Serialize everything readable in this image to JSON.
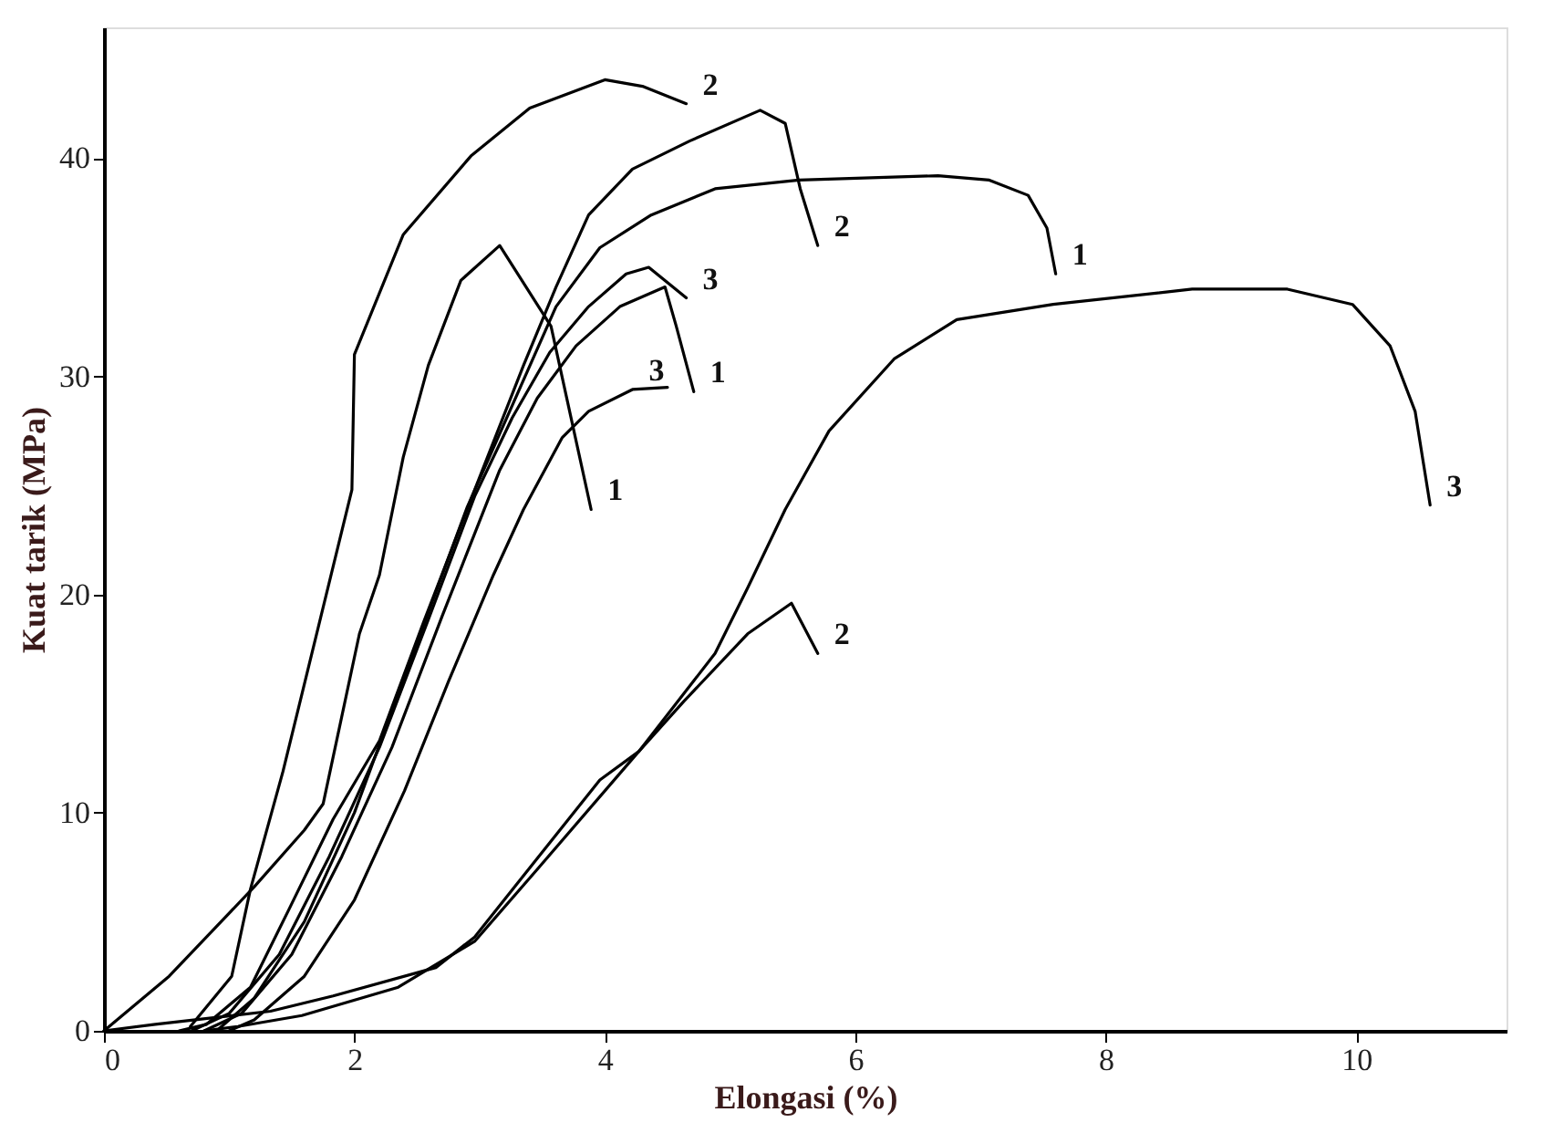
{
  "chart_data": {
    "type": "line",
    "xlabel": "Elongasi (%)",
    "ylabel": "Kuat tarik (MPa)",
    "xlim": [
      0,
      11.2
    ],
    "ylim": [
      0,
      46
    ],
    "xticks": [
      0,
      2,
      4,
      6,
      8,
      10
    ],
    "yticks": [
      0,
      10,
      20,
      30,
      40
    ],
    "grid": false,
    "marker": "none",
    "line_style": "solid",
    "series": [
      {
        "color": "#000000",
        "x": [
          0.69,
          1.02,
          1.17,
          1.43,
          1.98,
          2.0,
          2.39,
          2.93,
          3.4,
          4.0,
          4.3,
          4.65
        ],
        "values": [
          0.2,
          2.5,
          6.5,
          11.9,
          24.8,
          31,
          36.5,
          40.1,
          42.3,
          43.6,
          43.3,
          42.5
        ]
      },
      {
        "color": "#000000",
        "x": [
          0,
          0.52,
          1.2,
          1.6,
          1.75,
          2.04,
          2.2,
          2.39,
          2.59,
          2.85,
          3.16,
          3.57,
          3.73,
          3.89
        ],
        "values": [
          0,
          2.5,
          6.6,
          9.2,
          10.4,
          18.2,
          20.9,
          26.3,
          30.5,
          34.4,
          36,
          32.3,
          28.1,
          23.9
        ]
      },
      {
        "color": "#000000",
        "x": [
          0.6,
          0.82,
          1.17,
          1.48,
          1.83,
          2.2,
          2.55,
          2.96,
          3.35,
          3.61,
          3.87,
          4.22,
          4.68,
          5.24,
          5.44,
          5.56,
          5.7
        ],
        "values": [
          0,
          0.3,
          2,
          5.6,
          9.7,
          13.3,
          18.7,
          24.8,
          30.5,
          34.1,
          37.4,
          39.5,
          40.8,
          42.2,
          41.6,
          38.6,
          36
        ]
      },
      {
        "color": "#000000",
        "x": [
          0.9,
          1.2,
          1.6,
          2.0,
          2.45,
          2.9,
          3.61,
          3.96,
          4.37,
          4.88,
          5.55,
          6.66,
          7.07,
          7.38,
          7.53,
          7.6
        ],
        "values": [
          0,
          1.5,
          5,
          10,
          17,
          24,
          33.2,
          35.9,
          37.4,
          38.6,
          39,
          39.2,
          39,
          38.3,
          36.8,
          34.7
        ]
      },
      {
        "color": "#000000",
        "x": [
          0.7,
          1.0,
          1.4,
          1.8,
          2.2,
          2.6,
          2.96,
          3.26,
          3.56,
          3.87,
          4.17,
          4.35,
          4.65
        ],
        "values": [
          0,
          0.8,
          3.5,
          8,
          13,
          19,
          24.5,
          28.1,
          31.1,
          33.2,
          34.7,
          35,
          33.6
        ]
      },
      {
        "color": "#000000",
        "x": [
          0.8,
          1.1,
          1.5,
          1.9,
          2.3,
          2.7,
          3.16,
          3.46,
          3.77,
          4.12,
          4.48,
          4.57,
          4.71
        ],
        "values": [
          0,
          0.8,
          3.5,
          8,
          13,
          19,
          25.7,
          29,
          31.4,
          33.2,
          34.1,
          32.3,
          29.3
        ]
      },
      {
        "color": "#000000",
        "x": [
          1.0,
          1.2,
          1.6,
          2.0,
          2.4,
          2.75,
          3.11,
          3.35,
          3.66,
          3.87,
          4.22,
          4.5
        ],
        "values": [
          0,
          0.5,
          2.5,
          6,
          11,
          16,
          20.9,
          23.9,
          27.2,
          28.4,
          29.4,
          29.5
        ]
      },
      {
        "color": "#000000",
        "x": [
          0.8,
          1.07,
          1.58,
          2.35,
          2.96,
          3.46,
          4.27,
          4.88,
          5.14,
          5.44,
          5.79,
          6.31,
          6.81,
          7.58,
          8.69,
          9.45,
          9.97,
          10.27,
          10.47,
          10.59
        ],
        "values": [
          0,
          0.2,
          0.7,
          2,
          4.1,
          7.4,
          12.8,
          17.3,
          20.3,
          23.9,
          27.5,
          30.8,
          32.6,
          33.3,
          34,
          34,
          33.3,
          31.4,
          28.4,
          24.1
        ]
      },
      {
        "color": "#000000",
        "x": [
          0,
          0.41,
          1.33,
          1.83,
          2.65,
          2.96,
          3.46,
          3.96,
          4.27,
          4.63,
          5.14,
          5.49,
          5.7
        ],
        "values": [
          0,
          0.3,
          0.9,
          1.6,
          2.9,
          4.3,
          7.9,
          11.5,
          12.8,
          15.1,
          18.2,
          19.6,
          17.3
        ]
      }
    ],
    "annotations": [
      {
        "text": "2",
        "x": 4.65,
        "y": 42.5
      },
      {
        "text": "2",
        "x": 5.7,
        "y": 36
      },
      {
        "text": "1",
        "x": 7.6,
        "y": 34.7
      },
      {
        "text": "3",
        "x": 4.65,
        "y": 33.6
      },
      {
        "text": "1",
        "x": 4.71,
        "y": 29.3
      },
      {
        "text": "3",
        "x": 4.22,
        "y": 29.4
      },
      {
        "text": "1",
        "x": 3.89,
        "y": 23.9
      },
      {
        "text": "3",
        "x": 10.59,
        "y": 24.1
      },
      {
        "text": "2",
        "x": 5.7,
        "y": 17.3
      }
    ]
  }
}
